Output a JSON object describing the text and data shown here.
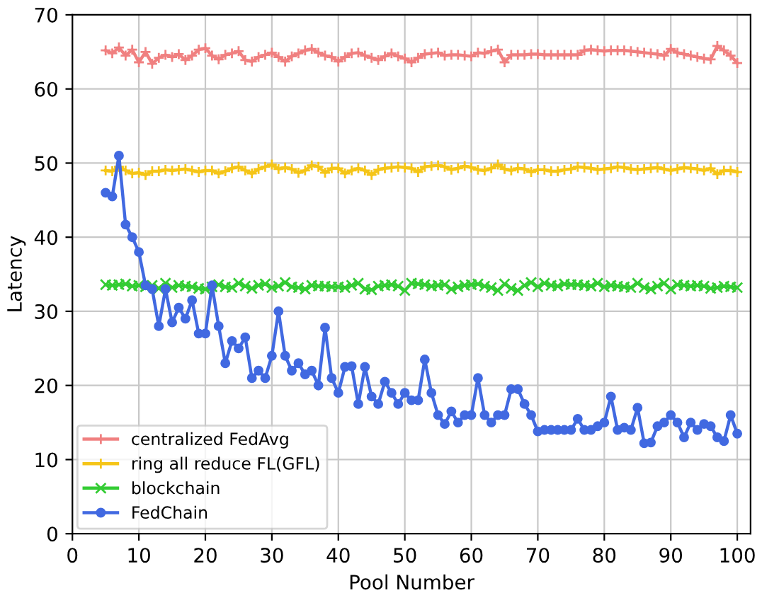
{
  "chart_data": {
    "type": "line",
    "xlabel": "Pool Number",
    "ylabel": "Latency",
    "x": [
      5,
      6,
      7,
      8,
      9,
      10,
      11,
      12,
      13,
      14,
      15,
      16,
      17,
      18,
      19,
      20,
      21,
      22,
      23,
      24,
      25,
      26,
      27,
      28,
      29,
      30,
      31,
      32,
      33,
      34,
      35,
      36,
      37,
      38,
      39,
      40,
      41,
      42,
      43,
      44,
      45,
      46,
      47,
      48,
      49,
      50,
      51,
      52,
      53,
      54,
      55,
      56,
      57,
      58,
      59,
      60,
      61,
      62,
      63,
      64,
      65,
      66,
      67,
      68,
      69,
      70,
      71,
      72,
      73,
      74,
      75,
      76,
      77,
      78,
      79,
      80,
      81,
      82,
      83,
      84,
      85,
      86,
      87,
      88,
      89,
      90,
      91,
      92,
      93,
      94,
      95,
      96,
      97,
      98,
      99,
      100
    ],
    "series": [
      {
        "name": "centralized FedAvg",
        "color": "#f08080",
        "marker": "plus",
        "values": [
          65.2,
          64.8,
          65.6,
          64.5,
          65.3,
          63.6,
          65.0,
          63.4,
          64.2,
          64.6,
          64.3,
          64.7,
          63.9,
          64.5,
          65.3,
          65.5,
          64.5,
          64.0,
          64.6,
          64.8,
          65.1,
          63.9,
          63.7,
          64.3,
          64.6,
          64.9,
          64.3,
          63.7,
          64.4,
          64.8,
          65.2,
          65.4,
          64.9,
          64.5,
          64.3,
          63.7,
          64.3,
          64.8,
          64.9,
          64.5,
          64.2,
          63.9,
          64.4,
          64.8,
          64.4,
          64.1,
          63.6,
          64.2,
          64.7,
          64.8,
          64.9,
          64.5,
          64.6,
          64.6,
          64.5,
          64.4,
          64.9,
          64.8,
          65.1,
          65.3,
          63.6,
          64.6,
          64.6,
          64.6,
          64.7,
          64.7,
          64.6,
          64.6,
          64.6,
          64.6,
          64.6,
          64.6,
          65.2,
          65.3,
          65.2,
          65.1,
          65.2,
          65.2,
          65.2,
          65.1,
          65.0,
          64.9,
          64.8,
          64.7,
          64.5,
          65.4,
          64.9,
          64.7,
          64.5,
          64.3,
          64.1,
          64.0,
          65.8,
          65.2,
          64.5,
          63.5
        ]
      },
      {
        "name": "ring all reduce FL(GFL)",
        "color": "#f5c518",
        "marker": "plus",
        "values": [
          49.0,
          48.9,
          49.5,
          49.0,
          48.6,
          48.7,
          48.4,
          48.9,
          48.9,
          49.1,
          49.0,
          49.1,
          49.2,
          49.0,
          48.8,
          49.0,
          49.0,
          48.6,
          48.9,
          49.3,
          49.5,
          49.0,
          48.6,
          49.2,
          49.5,
          49.8,
          49.2,
          49.4,
          49.2,
          48.7,
          49.0,
          49.7,
          49.5,
          48.7,
          49.3,
          49.3,
          48.6,
          49.0,
          49.3,
          49.0,
          48.4,
          49.1,
          49.3,
          49.4,
          49.5,
          49.4,
          49.3,
          48.8,
          49.5,
          49.6,
          49.7,
          49.5,
          49.1,
          49.3,
          49.6,
          49.4,
          49.1,
          49.0,
          49.3,
          49.8,
          49.2,
          49.0,
          49.3,
          49.2,
          48.8,
          49.1,
          49.1,
          48.9,
          48.9,
          49.1,
          49.2,
          49.5,
          49.4,
          49.3,
          49.1,
          49.2,
          49.3,
          49.5,
          49.4,
          49.2,
          49.1,
          49.2,
          49.3,
          49.4,
          49.2,
          49.0,
          49.2,
          49.4,
          49.3,
          49.2,
          49.0,
          49.3,
          48.5,
          49.0,
          49.0,
          48.8
        ]
      },
      {
        "name": "blockchain",
        "color": "#33cc33",
        "marker": "cross",
        "values": [
          33.6,
          33.5,
          33.6,
          33.7,
          33.4,
          33.5,
          33.3,
          33.5,
          33.1,
          33.8,
          33.2,
          33.5,
          33.4,
          33.3,
          33.1,
          33.0,
          33.3,
          33.6,
          33.3,
          33.2,
          33.8,
          33.4,
          33.1,
          33.5,
          33.7,
          33.2,
          33.4,
          33.9,
          33.3,
          33.2,
          33.0,
          33.5,
          33.4,
          33.4,
          33.3,
          33.3,
          33.2,
          33.5,
          33.8,
          33.0,
          32.9,
          33.4,
          33.5,
          33.6,
          33.4,
          32.8,
          33.8,
          33.7,
          33.6,
          33.4,
          33.5,
          33.6,
          33.0,
          33.3,
          33.5,
          33.6,
          33.7,
          33.4,
          33.2,
          32.8,
          33.7,
          33.1,
          32.8,
          33.5,
          33.9,
          33.3,
          33.8,
          33.5,
          33.4,
          33.7,
          33.6,
          33.6,
          33.5,
          33.4,
          33.8,
          33.3,
          33.5,
          33.4,
          33.3,
          33.2,
          33.8,
          33.2,
          33.0,
          33.4,
          33.8,
          33.0,
          33.6,
          33.5,
          33.4,
          33.5,
          33.4,
          33.1,
          33.2,
          33.4,
          33.3,
          33.2
        ]
      },
      {
        "name": "FedChain",
        "color": "#4169e1",
        "marker": "circle",
        "values": [
          46,
          45.5,
          51,
          41.7,
          40,
          38,
          33.5,
          33,
          28,
          33,
          28.5,
          30.5,
          29,
          31.5,
          27,
          27,
          33.5,
          28,
          23,
          26,
          25,
          26.5,
          21,
          22,
          21,
          24,
          30,
          24,
          22,
          23,
          21.5,
          22,
          20,
          27.8,
          21,
          19,
          22.5,
          22.6,
          17.5,
          22.5,
          18.5,
          17.5,
          20.5,
          19,
          17.5,
          19,
          18,
          18,
          23.5,
          19,
          16,
          14.8,
          16.5,
          15,
          16,
          16,
          21,
          16,
          15,
          16,
          16,
          19.5,
          19.5,
          17.5,
          16,
          13.8,
          14,
          14,
          14,
          14,
          14,
          15.5,
          14,
          14,
          14.5,
          15,
          18.5,
          14,
          14.3,
          14,
          17,
          12.2,
          12.3,
          14.5,
          15,
          16,
          15,
          13,
          15,
          14,
          14.8,
          14.5,
          13,
          12.5,
          16,
          13.5
        ]
      }
    ],
    "xlim": [
      0,
      102
    ],
    "ylim": [
      0,
      70
    ],
    "xticks": [
      0,
      10,
      20,
      30,
      40,
      50,
      60,
      70,
      80,
      90,
      100
    ],
    "yticks": [
      0,
      10,
      20,
      30,
      40,
      50,
      60,
      70
    ],
    "grid": true,
    "legend": "bottom left"
  }
}
